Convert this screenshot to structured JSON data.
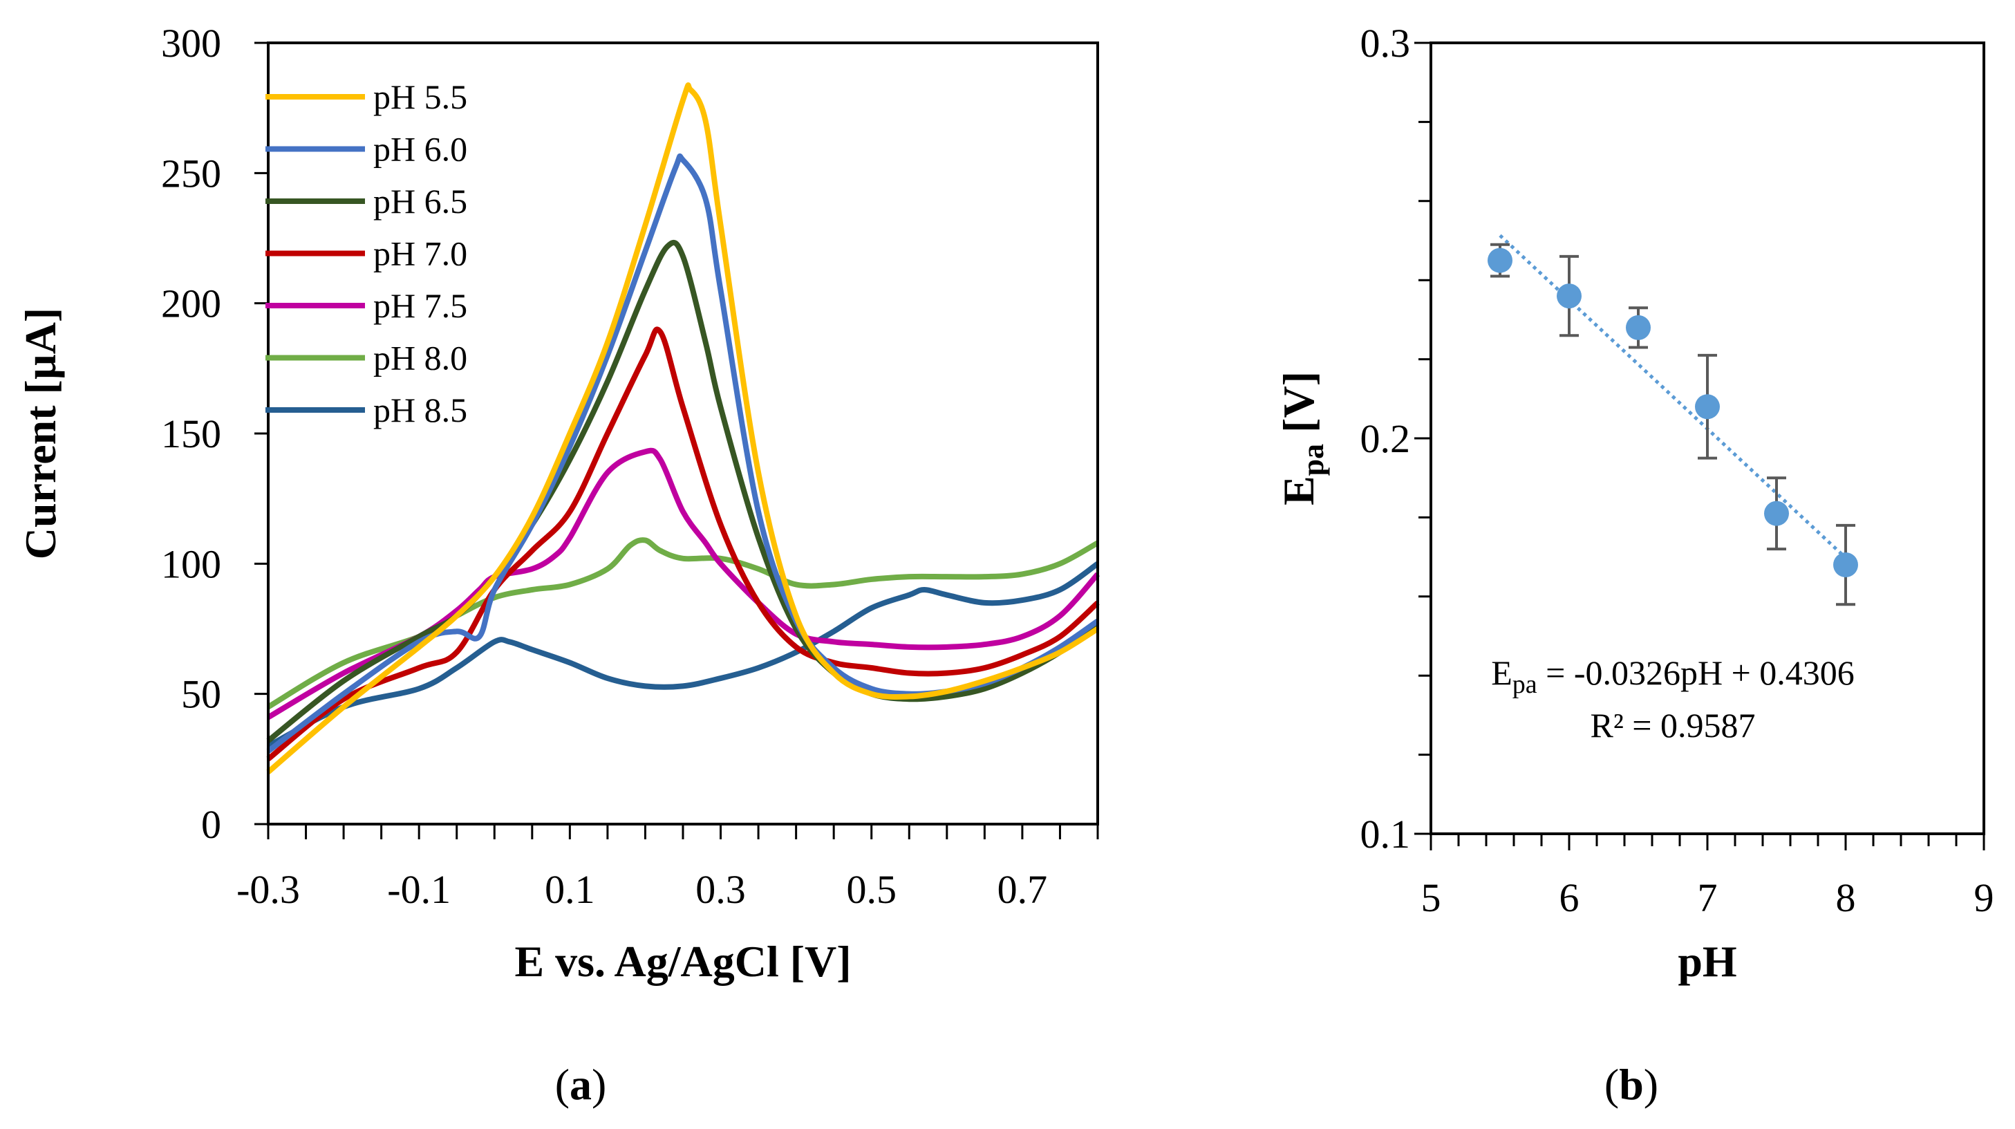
{
  "chart_data": [
    {
      "type": "line",
      "panel_label": "(a)",
      "xlabel": "E vs. Ag/AgCl [V]",
      "ylabel": "Current [µA]",
      "xlim": [
        -0.3,
        0.8
      ],
      "ylim": [
        0,
        300
      ],
      "xticks": [
        "-0.3",
        "-0.1",
        "0.1",
        "0.3",
        "0.5",
        "0.7"
      ],
      "xtick_values": [
        -0.3,
        -0.1,
        0.1,
        0.3,
        0.5,
        0.7
      ],
      "yticks": [
        "0",
        "50",
        "100",
        "150",
        "200",
        "250",
        "300"
      ],
      "ytick_values": [
        0,
        50,
        100,
        150,
        200,
        250,
        300
      ],
      "legend_position": "top-left",
      "series": [
        {
          "name": "pH 5.5",
          "color": "#FFC000",
          "x": [
            -0.3,
            -0.2,
            -0.1,
            -0.05,
            0,
            0.05,
            0.1,
            0.15,
            0.2,
            0.25,
            0.26,
            0.28,
            0.3,
            0.35,
            0.4,
            0.45,
            0.5,
            0.55,
            0.6,
            0.65,
            0.7,
            0.75,
            0.8
          ],
          "y": [
            20,
            45,
            68,
            80,
            95,
            118,
            150,
            185,
            230,
            278,
            282,
            270,
            230,
            135,
            80,
            58,
            50,
            49,
            51,
            55,
            60,
            66,
            75
          ]
        },
        {
          "name": "pH 6.0",
          "color": "#4472C4",
          "x": [
            -0.3,
            -0.2,
            -0.1,
            -0.05,
            -0.02,
            0,
            0.05,
            0.1,
            0.15,
            0.2,
            0.24,
            0.25,
            0.28,
            0.3,
            0.35,
            0.4,
            0.45,
            0.5,
            0.55,
            0.6,
            0.65,
            0.7,
            0.75,
            0.8
          ],
          "y": [
            28,
            50,
            70,
            74,
            72,
            90,
            115,
            145,
            180,
            220,
            252,
            255,
            240,
            205,
            120,
            78,
            60,
            52,
            50,
            51,
            54,
            60,
            68,
            78
          ]
        },
        {
          "name": "pH 6.5",
          "color": "#375623",
          "x": [
            -0.3,
            -0.2,
            -0.1,
            -0.05,
            0,
            0.05,
            0.1,
            0.15,
            0.2,
            0.23,
            0.25,
            0.28,
            0.3,
            0.35,
            0.4,
            0.45,
            0.5,
            0.55,
            0.6,
            0.65,
            0.7,
            0.75,
            0.8
          ],
          "y": [
            32,
            55,
            72,
            80,
            95,
            115,
            140,
            170,
            205,
            222,
            218,
            185,
            160,
            110,
            75,
            58,
            50,
            48,
            49,
            52,
            58,
            66,
            76
          ]
        },
        {
          "name": "pH 7.0",
          "color": "#C00000",
          "x": [
            -0.3,
            -0.2,
            -0.1,
            -0.05,
            0,
            0.05,
            0.1,
            0.15,
            0.2,
            0.22,
            0.25,
            0.3,
            0.35,
            0.4,
            0.45,
            0.5,
            0.55,
            0.6,
            0.65,
            0.7,
            0.75,
            0.8
          ],
          "y": [
            25,
            48,
            60,
            66,
            90,
            105,
            120,
            150,
            180,
            189,
            160,
            115,
            85,
            68,
            62,
            60,
            58,
            58,
            60,
            65,
            72,
            85
          ]
        },
        {
          "name": "pH 7.5",
          "color": "#C000A0",
          "x": [
            -0.3,
            -0.2,
            -0.1,
            -0.05,
            -0.02,
            0,
            0.05,
            0.08,
            0.1,
            0.15,
            0.2,
            0.22,
            0.25,
            0.28,
            0.3,
            0.35,
            0.4,
            0.45,
            0.5,
            0.55,
            0.6,
            0.65,
            0.7,
            0.75,
            0.8
          ],
          "y": [
            41,
            58,
            72,
            82,
            90,
            95,
            98,
            103,
            110,
            135,
            143,
            140,
            120,
            108,
            100,
            85,
            73,
            70,
            69,
            68,
            68,
            69,
            72,
            80,
            96
          ]
        },
        {
          "name": "pH 8.0",
          "color": "#70AD47",
          "x": [
            -0.3,
            -0.2,
            -0.1,
            -0.05,
            0,
            0.05,
            0.1,
            0.15,
            0.18,
            0.2,
            0.22,
            0.25,
            0.3,
            0.35,
            0.4,
            0.45,
            0.5,
            0.55,
            0.6,
            0.65,
            0.7,
            0.75,
            0.8
          ],
          "y": [
            45,
            62,
            72,
            80,
            87,
            90,
            92,
            98,
            107,
            109,
            105,
            102,
            102,
            98,
            92,
            92,
            94,
            95,
            95,
            95,
            96,
            100,
            108
          ]
        },
        {
          "name": "pH 8.5",
          "color": "#255E91",
          "x": [
            -0.3,
            -0.2,
            -0.1,
            -0.05,
            0,
            0.02,
            0.05,
            0.1,
            0.15,
            0.2,
            0.25,
            0.3,
            0.35,
            0.4,
            0.45,
            0.5,
            0.55,
            0.57,
            0.6,
            0.65,
            0.7,
            0.75,
            0.8
          ],
          "y": [
            30,
            45,
            52,
            60,
            70,
            70,
            67,
            62,
            56,
            53,
            53,
            56,
            60,
            66,
            74,
            83,
            88,
            90,
            88,
            85,
            86,
            90,
            100
          ]
        }
      ]
    },
    {
      "type": "scatter",
      "panel_label": "(b)",
      "xlabel": "pH",
      "ylabel_main": "E",
      "ylabel_sub": "pa",
      "ylabel_tail": " [V]",
      "xlim": [
        5,
        9
      ],
      "ylim": [
        0.1,
        0.3
      ],
      "xticks": [
        "5",
        "6",
        "7",
        "8",
        "9"
      ],
      "xtick_values": [
        5,
        6,
        7,
        8,
        9
      ],
      "yticks": [
        "0.1",
        "0.2",
        "0.3"
      ],
      "ytick_values": [
        0.1,
        0.2,
        0.3
      ],
      "series": [
        {
          "name": "Epa",
          "color": "#5B9BD5",
          "x": [
            5.5,
            6.0,
            6.5,
            7.0,
            7.5,
            8.0
          ],
          "y": [
            0.245,
            0.236,
            0.228,
            0.208,
            0.181,
            0.168
          ],
          "error": [
            0.004,
            0.01,
            0.005,
            0.013,
            0.009,
            0.01
          ]
        }
      ],
      "trendline": {
        "slope": -0.0326,
        "intercept": 0.4306,
        "x_range": [
          5.5,
          8.0
        ],
        "color": "#5B9BD5",
        "style": "dotted"
      },
      "equation_main": "E",
      "equation_sub": "pa",
      "equation_rest": " = -0.0326pH + 0.4306",
      "r_squared": "R² = 0.9587"
    }
  ]
}
